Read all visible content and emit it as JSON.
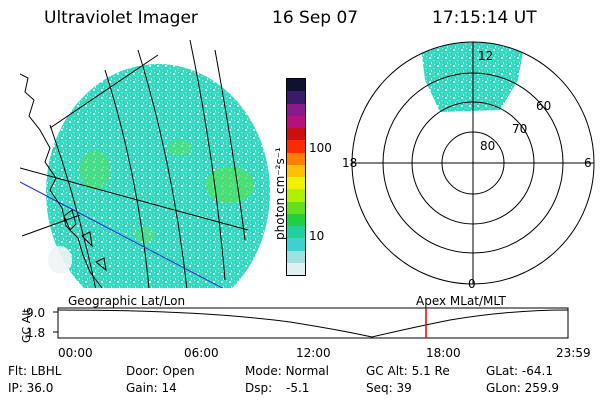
{
  "header": {
    "instrument": "Ultraviolet Imager",
    "date": "16 Sep 07",
    "time": "17:15:14 UT"
  },
  "colorbar": {
    "label": "photon cm⁻²s⁻¹",
    "ticks": [
      "100",
      "10"
    ],
    "colors": [
      "#101030",
      "#3a1a6a",
      "#8a1a8a",
      "#b8107a",
      "#c81010",
      "#ff2a00",
      "#ff8000",
      "#ffc000",
      "#f0f000",
      "#b0f000",
      "#60e020",
      "#20d040",
      "#20d0a0",
      "#40d0d0",
      "#a0e0e0",
      "#e0f0f0"
    ]
  },
  "polar_plot": {
    "lat_labels": [
      "80",
      "70",
      "60"
    ],
    "mlt_labels": {
      "top": "12",
      "left": "18",
      "right": "6",
      "bottom": "0"
    }
  },
  "image_labels": {
    "left": "Geographic Lat/Lon",
    "right": "Apex  MLat/MLT"
  },
  "altitude_plot": {
    "ylabel": "GC Alt",
    "y_ticks": [
      "9.0",
      "1.8"
    ],
    "x_ticks": [
      "00:00",
      "06:00",
      "12:00",
      "18:00",
      "23:59"
    ],
    "current_time_marker": "17:15",
    "marker_color": "#e00000"
  },
  "status": {
    "row1": [
      {
        "label": "Flt:",
        "value": "LBHL"
      },
      {
        "label": "Door:",
        "value": "Open"
      },
      {
        "label": "Mode:",
        "value": "Normal"
      },
      {
        "label": "GC Alt:",
        "value": "5.1 Re"
      },
      {
        "label": "GLat:",
        "value": "-64.1"
      }
    ],
    "row2": [
      {
        "label": "IP:",
        "value": "36.0"
      },
      {
        "label": "Gain:",
        "value": "14"
      },
      {
        "label": "Dsp:",
        "value": "-5.1"
      },
      {
        "label": "Seq:",
        "value": "39"
      },
      {
        "label": "GLon:",
        "value": "259.9"
      }
    ]
  }
}
